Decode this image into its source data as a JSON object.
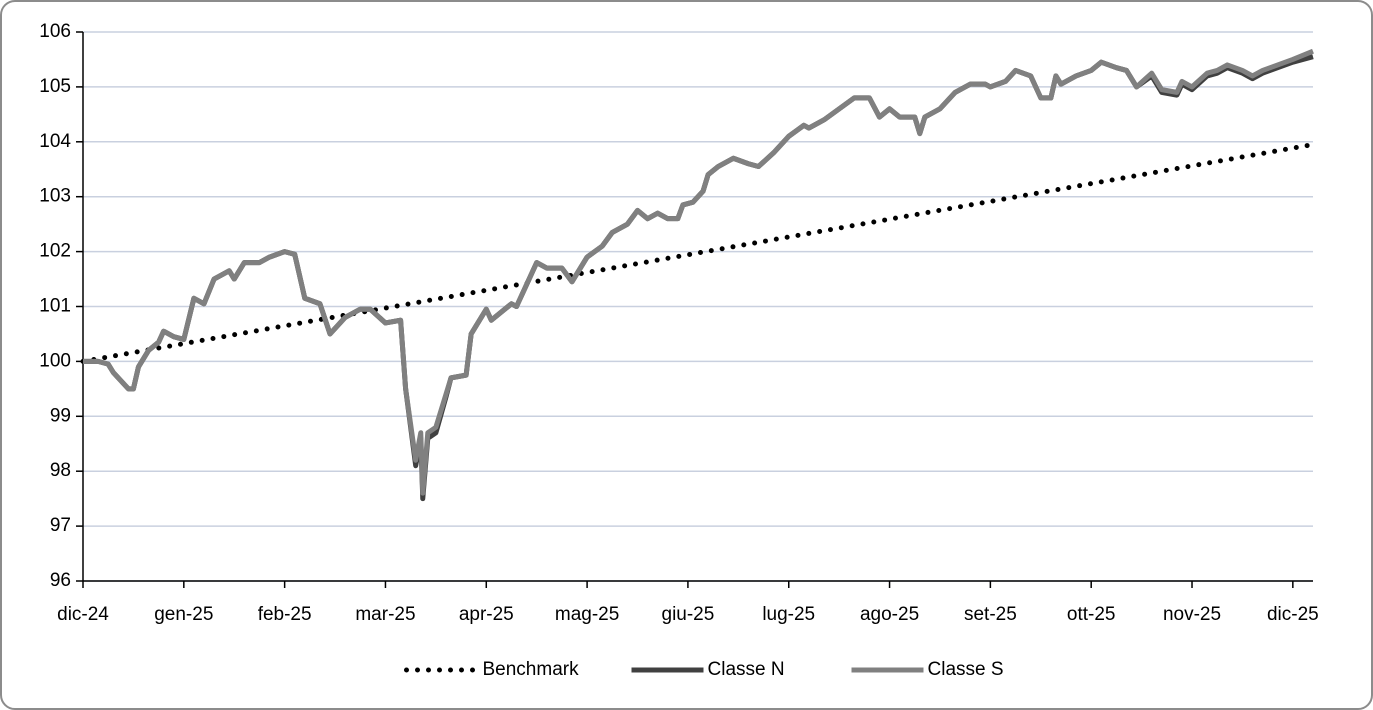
{
  "chart_data": {
    "type": "line",
    "xlim": [
      0,
      12.2
    ],
    "xticks": [
      {
        "value": 0,
        "label": "dic-24"
      },
      {
        "value": 1,
        "label": "gen-25"
      },
      {
        "value": 2,
        "label": "feb-25"
      },
      {
        "value": 3,
        "label": "mar-25"
      },
      {
        "value": 4,
        "label": "apr-25"
      },
      {
        "value": 5,
        "label": "mag-25"
      },
      {
        "value": 6,
        "label": "giu-25"
      },
      {
        "value": 7,
        "label": "lug-25"
      },
      {
        "value": 8,
        "label": "ago-25"
      },
      {
        "value": 9,
        "label": "set-25"
      },
      {
        "value": 10,
        "label": "ott-25"
      },
      {
        "value": 11,
        "label": "nov-25"
      },
      {
        "value": 12,
        "label": "dic-25"
      }
    ],
    "ylim": [
      96,
      106
    ],
    "yticks": [
      96,
      97,
      98,
      99,
      100,
      101,
      102,
      103,
      104,
      105,
      106
    ],
    "grid": true,
    "legend": "bottom",
    "series": [
      {
        "name": "Benchmark",
        "color": "#000000",
        "style": "dotted",
        "x": [
          0,
          12.2
        ],
        "values": [
          100,
          103.95
        ]
      },
      {
        "name": "Classe N",
        "color": "#404040",
        "style": "solid",
        "x": [
          0,
          0.15,
          0.25,
          0.3,
          0.45,
          0.5,
          0.55,
          0.65,
          0.75,
          0.8,
          0.9,
          1.0,
          1.1,
          1.2,
          1.3,
          1.45,
          1.5,
          1.6,
          1.75,
          1.85,
          2.0,
          2.1,
          2.2,
          2.35,
          2.45,
          2.6,
          2.75,
          2.85,
          3.0,
          3.15,
          3.2,
          3.3,
          3.35,
          3.37,
          3.42,
          3.5,
          3.6,
          3.65,
          3.8,
          3.85,
          4.0,
          4.05,
          4.25,
          4.3,
          4.4,
          4.5,
          4.6,
          4.75,
          4.85,
          5.0,
          5.15,
          5.25,
          5.4,
          5.5,
          5.6,
          5.7,
          5.8,
          5.9,
          5.95,
          6.05,
          6.15,
          6.2,
          6.3,
          6.45,
          6.6,
          6.7,
          6.85,
          7.0,
          7.15,
          7.2,
          7.35,
          7.5,
          7.65,
          7.8,
          7.9,
          8.0,
          8.1,
          8.25,
          8.3,
          8.35,
          8.5,
          8.65,
          8.8,
          8.95,
          9.0,
          9.15,
          9.25,
          9.4,
          9.5,
          9.6,
          9.65,
          9.7,
          9.85,
          10.0,
          10.1,
          10.25,
          10.35,
          10.45,
          10.6,
          10.7,
          10.85,
          10.9,
          11.0,
          11.15,
          11.25,
          11.35,
          11.5,
          11.6,
          11.7,
          11.85,
          12.0,
          12.2
        ],
        "values": [
          100.0,
          100.0,
          99.95,
          99.8,
          99.5,
          99.5,
          99.9,
          100.2,
          100.35,
          100.55,
          100.45,
          100.4,
          101.15,
          101.05,
          101.5,
          101.65,
          101.5,
          101.8,
          101.8,
          101.9,
          102.0,
          101.95,
          101.15,
          101.05,
          100.5,
          100.8,
          100.95,
          100.95,
          100.7,
          100.75,
          99.5,
          98.1,
          98.6,
          97.5,
          98.6,
          98.7,
          99.35,
          99.7,
          99.75,
          100.5,
          100.95,
          100.75,
          101.05,
          101.0,
          101.4,
          101.8,
          101.7,
          101.7,
          101.45,
          101.9,
          102.1,
          102.35,
          102.5,
          102.75,
          102.6,
          102.7,
          102.6,
          102.6,
          102.85,
          102.9,
          103.1,
          103.4,
          103.55,
          103.7,
          103.6,
          103.55,
          103.8,
          104.1,
          104.3,
          104.25,
          104.4,
          104.6,
          104.8,
          104.8,
          104.45,
          104.6,
          104.45,
          104.45,
          104.15,
          104.45,
          104.6,
          104.9,
          105.05,
          105.05,
          105.0,
          105.1,
          105.3,
          105.2,
          104.8,
          104.8,
          105.2,
          105.05,
          105.2,
          105.3,
          105.45,
          105.35,
          105.3,
          105.0,
          105.2,
          104.9,
          104.85,
          105.05,
          104.95,
          105.2,
          105.25,
          105.35,
          105.25,
          105.15,
          105.25,
          105.35,
          105.45,
          105.55
        ]
      },
      {
        "name": "Classe S",
        "color": "#808080",
        "style": "solid",
        "x": [
          0,
          0.15,
          0.25,
          0.3,
          0.45,
          0.5,
          0.55,
          0.65,
          0.75,
          0.8,
          0.9,
          1.0,
          1.1,
          1.2,
          1.3,
          1.45,
          1.5,
          1.6,
          1.75,
          1.85,
          2.0,
          2.1,
          2.2,
          2.35,
          2.45,
          2.6,
          2.75,
          2.85,
          3.0,
          3.15,
          3.2,
          3.3,
          3.35,
          3.37,
          3.42,
          3.5,
          3.6,
          3.65,
          3.8,
          3.85,
          4.0,
          4.05,
          4.25,
          4.3,
          4.4,
          4.5,
          4.6,
          4.75,
          4.85,
          5.0,
          5.15,
          5.25,
          5.4,
          5.5,
          5.6,
          5.7,
          5.8,
          5.9,
          5.95,
          6.05,
          6.15,
          6.2,
          6.3,
          6.45,
          6.6,
          6.7,
          6.85,
          7.0,
          7.15,
          7.2,
          7.35,
          7.5,
          7.65,
          7.8,
          7.9,
          8.0,
          8.1,
          8.25,
          8.3,
          8.35,
          8.5,
          8.65,
          8.8,
          8.95,
          9.0,
          9.15,
          9.25,
          9.4,
          9.5,
          9.6,
          9.65,
          9.7,
          9.85,
          10.0,
          10.1,
          10.25,
          10.35,
          10.45,
          10.6,
          10.7,
          10.85,
          10.9,
          11.0,
          11.15,
          11.25,
          11.35,
          11.5,
          11.6,
          11.7,
          11.85,
          12.0,
          12.2
        ],
        "values": [
          100.0,
          100.0,
          99.95,
          99.8,
          99.5,
          99.5,
          99.9,
          100.2,
          100.35,
          100.55,
          100.45,
          100.4,
          101.15,
          101.05,
          101.5,
          101.65,
          101.5,
          101.8,
          101.8,
          101.9,
          102.0,
          101.95,
          101.15,
          101.05,
          100.5,
          100.8,
          100.95,
          100.95,
          100.7,
          100.75,
          99.5,
          98.2,
          98.7,
          97.6,
          98.7,
          98.8,
          99.4,
          99.7,
          99.75,
          100.5,
          100.95,
          100.75,
          101.05,
          101.0,
          101.4,
          101.8,
          101.7,
          101.7,
          101.45,
          101.9,
          102.1,
          102.35,
          102.5,
          102.75,
          102.6,
          102.7,
          102.6,
          102.6,
          102.85,
          102.9,
          103.1,
          103.4,
          103.55,
          103.7,
          103.6,
          103.55,
          103.8,
          104.1,
          104.3,
          104.25,
          104.4,
          104.6,
          104.8,
          104.8,
          104.45,
          104.6,
          104.45,
          104.45,
          104.15,
          104.45,
          104.6,
          104.9,
          105.05,
          105.05,
          105.0,
          105.1,
          105.3,
          105.2,
          104.8,
          104.8,
          105.2,
          105.05,
          105.2,
          105.3,
          105.45,
          105.35,
          105.3,
          105.0,
          105.25,
          104.95,
          104.9,
          105.1,
          105.0,
          105.25,
          105.3,
          105.4,
          105.3,
          105.2,
          105.3,
          105.4,
          105.5,
          105.65
        ]
      }
    ]
  }
}
